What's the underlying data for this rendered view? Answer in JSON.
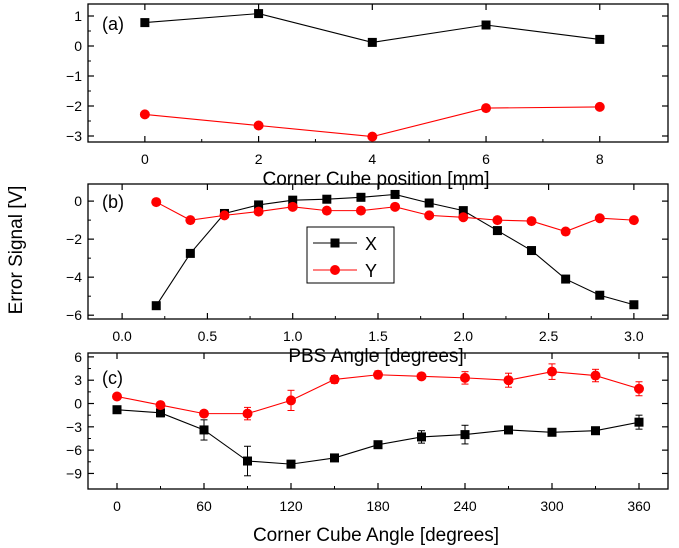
{
  "shared_ylabel": "Error Signal [V]",
  "chart_data": [
    {
      "type": "line",
      "panel_label": "(a)",
      "xlabel": "Corner Cube position [mm]",
      "xlim": [
        -1.0,
        9.2
      ],
      "ylim": [
        -3.2,
        1.4
      ],
      "xticks": [
        0,
        2,
        4,
        6,
        8
      ],
      "yticks": [
        1,
        0,
        -1,
        -2,
        -3
      ],
      "series": [
        {
          "name": "X",
          "color": "#000000",
          "marker": "square",
          "x": [
            0,
            2,
            4,
            6,
            8
          ],
          "y": [
            0.78,
            1.08,
            0.12,
            0.7,
            0.22
          ]
        },
        {
          "name": "Y",
          "color": "#ff0000",
          "marker": "circle",
          "x": [
            0,
            2,
            4,
            6,
            8
          ],
          "y": [
            -2.28,
            -2.65,
            -3.02,
            -2.07,
            -2.03
          ]
        }
      ]
    },
    {
      "type": "line",
      "panel_label": "(b)",
      "xlabel": "PBS Angle [degrees]",
      "xlim": [
        -0.2,
        3.2
      ],
      "ylim": [
        -6.2,
        0.9
      ],
      "xticks": [
        0.0,
        0.5,
        1.0,
        1.5,
        2.0,
        2.5,
        3.0
      ],
      "xtick_labels": [
        "0.0",
        "0.5",
        "1.0",
        "1.5",
        "2.0",
        "2.5",
        "3.0"
      ],
      "yticks": [
        0,
        -2,
        -4,
        -6
      ],
      "legend": {
        "position": "center-left",
        "entries": [
          "X",
          "Y"
        ]
      },
      "series": [
        {
          "name": "X",
          "color": "#000000",
          "marker": "square",
          "x": [
            0.2,
            0.4,
            0.6,
            0.8,
            1.0,
            1.2,
            1.4,
            1.6,
            1.8,
            2.0,
            2.2,
            2.4,
            2.6,
            2.8,
            3.0
          ],
          "y": [
            -5.5,
            -2.75,
            -0.65,
            -0.2,
            0.05,
            0.1,
            0.2,
            0.35,
            -0.1,
            -0.5,
            -1.55,
            -2.6,
            -4.1,
            -4.95,
            -5.45
          ]
        },
        {
          "name": "Y",
          "color": "#ff0000",
          "marker": "circle",
          "x": [
            0.2,
            0.4,
            0.6,
            0.8,
            1.0,
            1.2,
            1.4,
            1.6,
            1.8,
            2.0,
            2.2,
            2.4,
            2.6,
            2.8,
            3.0
          ],
          "y": [
            -0.05,
            -1.0,
            -0.75,
            -0.55,
            -0.3,
            -0.5,
            -0.5,
            -0.3,
            -0.75,
            -0.85,
            -1.0,
            -1.05,
            -1.6,
            -0.9,
            -1.0
          ]
        }
      ]
    },
    {
      "type": "line",
      "panel_label": "(c)",
      "xlabel": "Corner Cube Angle [degrees]",
      "xlim": [
        -20,
        380
      ],
      "ylim": [
        -11,
        6.5
      ],
      "xticks": [
        0,
        60,
        120,
        180,
        240,
        300,
        360
      ],
      "yticks": [
        6,
        3,
        0,
        -3,
        -6,
        -9
      ],
      "series": [
        {
          "name": "X",
          "color": "#000000",
          "marker": "square",
          "x": [
            0,
            30,
            60,
            90,
            120,
            150,
            180,
            210,
            240,
            270,
            300,
            330,
            360
          ],
          "y": [
            -0.8,
            -1.2,
            -3.4,
            -7.4,
            -7.8,
            -7.0,
            -5.3,
            -4.3,
            -4.0,
            -3.4,
            -3.7,
            -3.5,
            -2.4
          ],
          "err": [
            0.3,
            0.5,
            1.3,
            1.9,
            0.3,
            0.3,
            0.3,
            0.8,
            1.2,
            0.3,
            0.3,
            0.3,
            0.9
          ]
        },
        {
          "name": "Y",
          "color": "#ff0000",
          "marker": "circle",
          "x": [
            0,
            30,
            60,
            90,
            120,
            150,
            180,
            210,
            240,
            270,
            300,
            330,
            360
          ],
          "y": [
            0.9,
            -0.2,
            -1.3,
            -1.3,
            0.4,
            3.1,
            3.7,
            3.5,
            3.3,
            3.0,
            4.1,
            3.6,
            1.9
          ],
          "err": [
            0.3,
            0.4,
            0.3,
            0.8,
            1.3,
            0.5,
            0.5,
            0.4,
            0.8,
            0.9,
            1.0,
            0.8,
            0.9
          ]
        }
      ]
    }
  ]
}
